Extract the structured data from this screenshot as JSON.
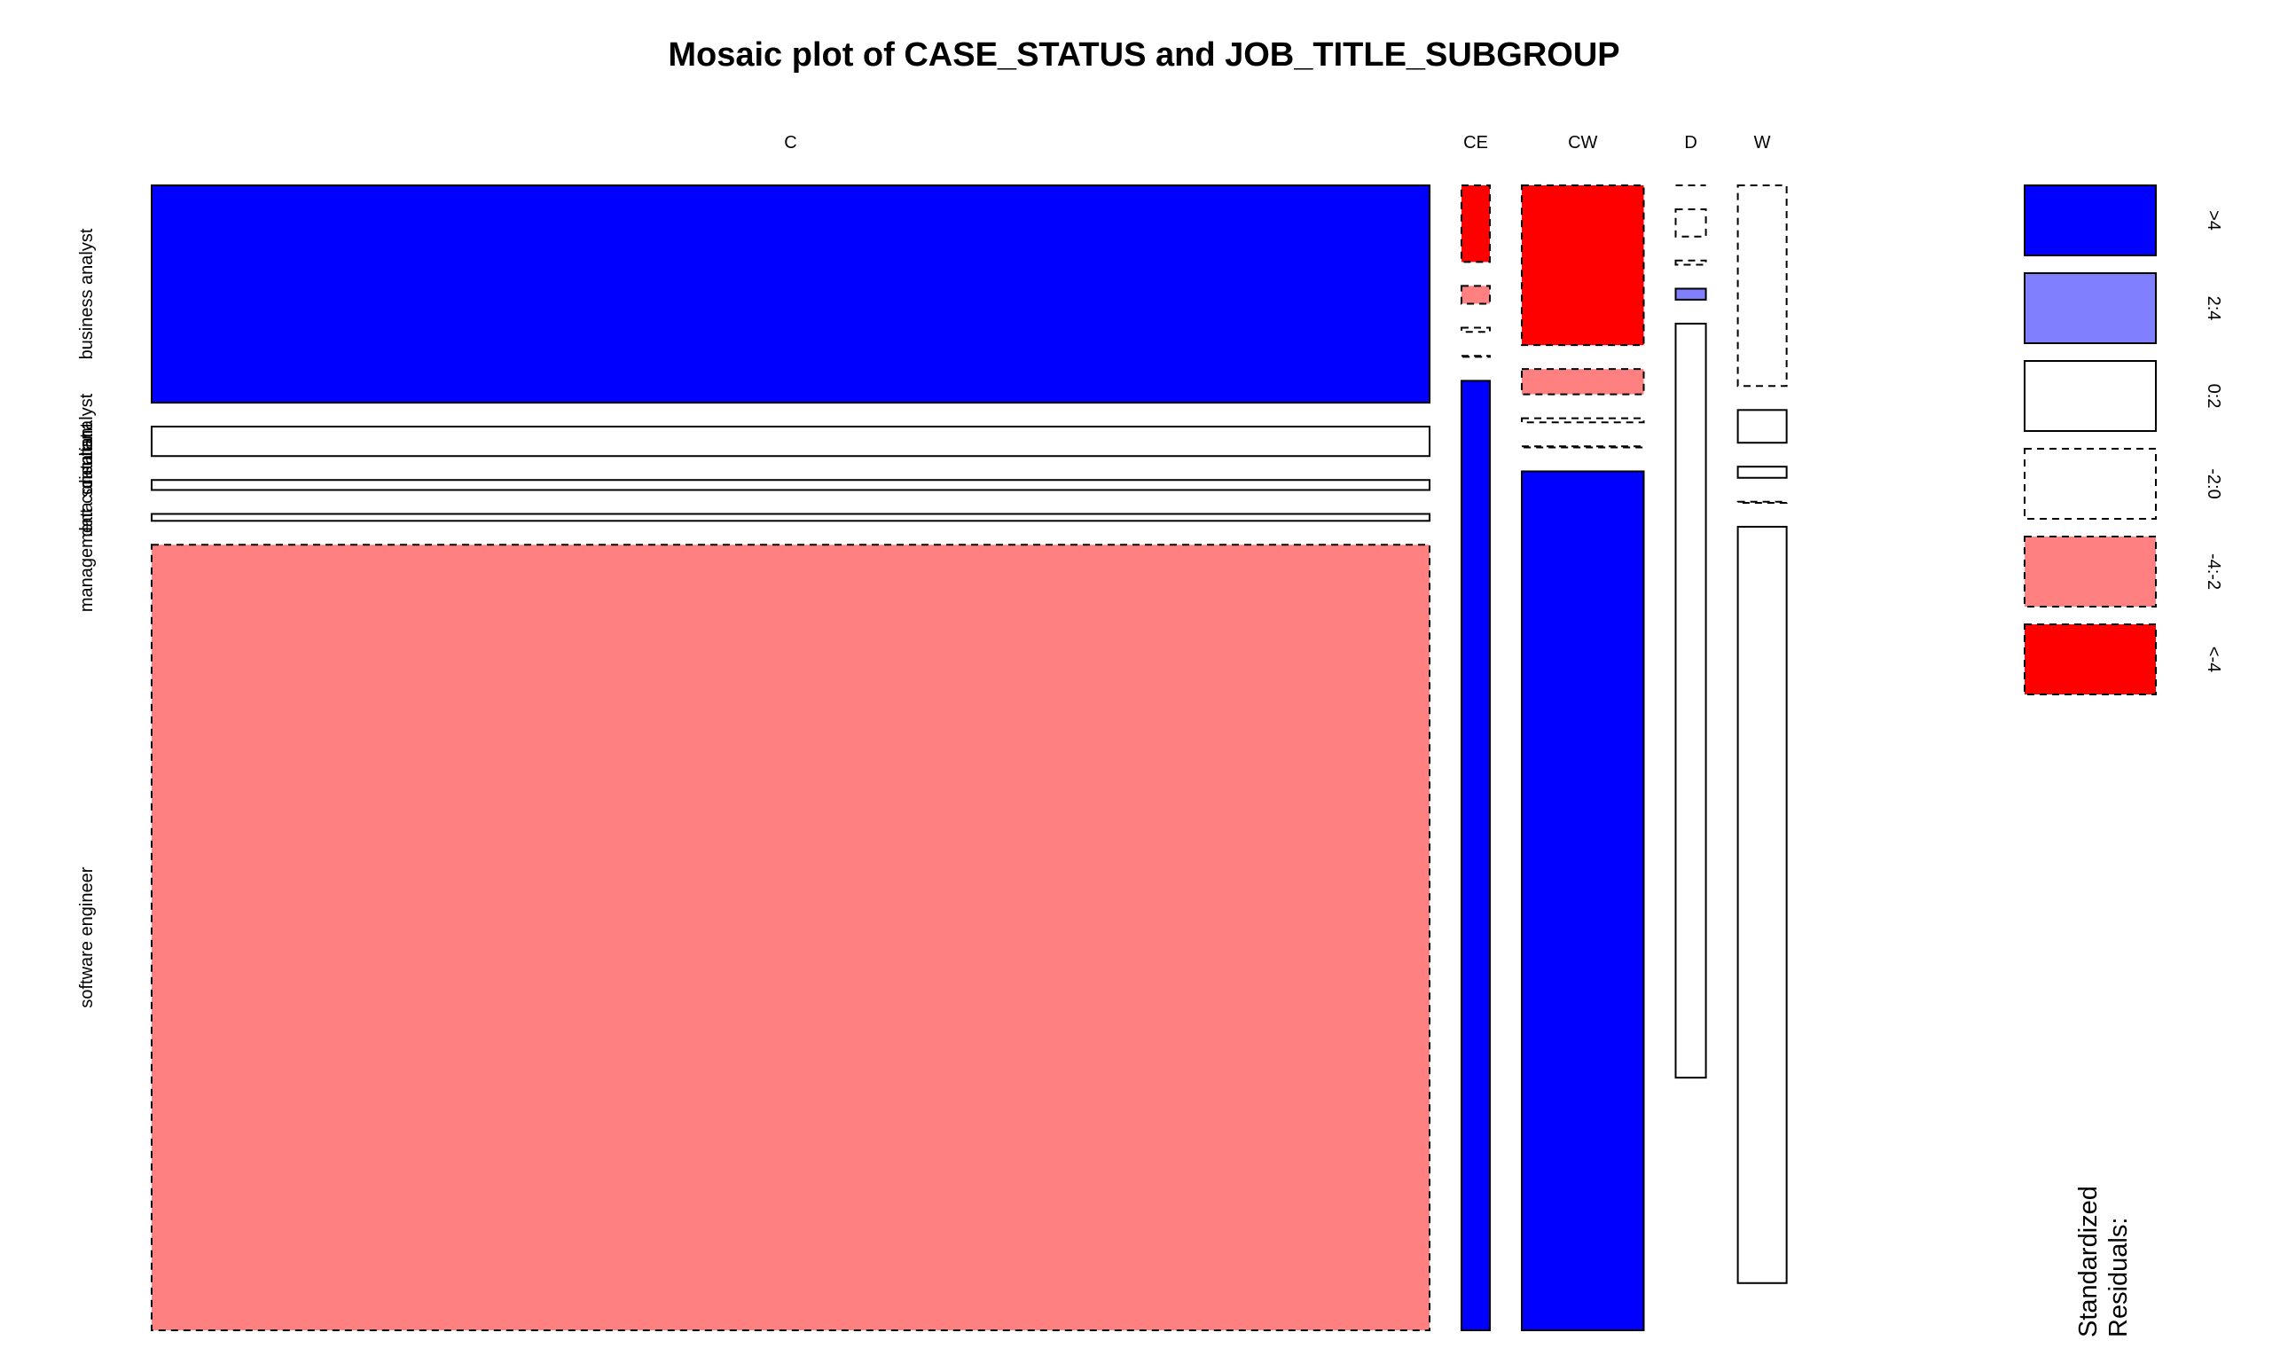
{
  "chart_data": {
    "type": "mosaic",
    "title": "Mosaic plot of CASE_STATUS and JOB_TITLE_SUBGROUP",
    "x_variable": "CASE_STATUS",
    "y_variable": "JOB_TITLE_SUBGROUP",
    "columns": [
      "C",
      "CE",
      "CW",
      "D",
      "W"
    ],
    "rows": [
      "business analyst",
      "data analyst",
      "data scientist",
      "management consultant",
      "software engineer"
    ],
    "column_fractions": [
      0.8197,
      0.0182,
      0.0782,
      0.0194,
      0.0313
    ],
    "row_fractions_by_column": [
      [
        0.2071,
        0.0281,
        0.0095,
        0.0066,
        0.7487
      ],
      [
        0.073,
        0.017,
        0.004,
        0.001,
        0.905
      ],
      [
        0.1523,
        0.024,
        0.004,
        0.001,
        0.8187
      ],
      [
        0.0,
        0.026,
        0.004,
        0.0105,
        0.7187
      ],
      [
        0.1913,
        0.0312,
        0.0106,
        0.001,
        0.7209
      ]
    ],
    "residual_classes": [
      [
        "gt4",
        "0to2",
        "0to2",
        "0to2",
        "m4tom2"
      ],
      [
        "lt_m4",
        "m4tom2",
        "m2to0",
        "m2to0",
        "gt4"
      ],
      [
        "lt_m4",
        "m4tom2",
        "m2to0",
        "m2to0",
        "gt4"
      ],
      [
        "m2to0",
        "m2to0",
        "m2to0",
        "2to4",
        "0to2"
      ],
      [
        "m2to0",
        "0to2",
        "0to2",
        "m2to0",
        "0to2"
      ]
    ],
    "legend": {
      "title_lines": [
        "Standardized",
        "Residuals:"
      ],
      "entries": [
        {
          "key": "gt4",
          "label": ">4",
          "fill": "#0000ff",
          "dashed": false
        },
        {
          "key": "2to4",
          "label": "2:4",
          "fill": "#8080ff",
          "dashed": false
        },
        {
          "key": "0to2",
          "label": "0:2",
          "fill": "#ffffff",
          "dashed": false
        },
        {
          "key": "m2to0",
          "label": "-2:0",
          "fill": "#ffffff",
          "dashed": true
        },
        {
          "key": "m4tom2",
          "label": "-4:-2",
          "fill": "#ff8080",
          "dashed": true
        },
        {
          "key": "lt_m4",
          "label": "<-4",
          "fill": "#ff0000",
          "dashed": true
        }
      ]
    }
  }
}
